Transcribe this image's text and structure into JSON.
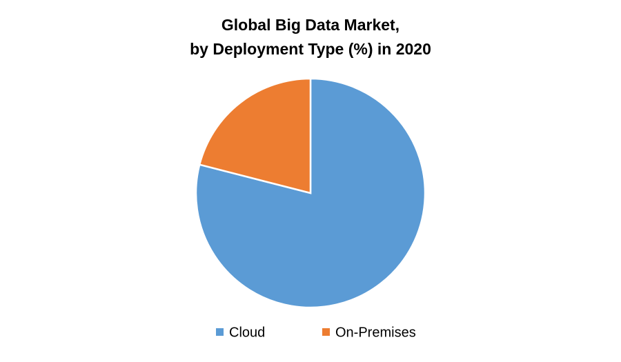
{
  "chart_data": {
    "type": "pie",
    "title": [
      "Global Big Data Market,",
      "by Deployment Type (%) in 2020"
    ],
    "categories": [
      "Cloud",
      "On-Premises"
    ],
    "values": [
      79,
      21
    ],
    "colors": [
      "#5b9bd5",
      "#ed7d31"
    ],
    "legend": "bottom"
  }
}
